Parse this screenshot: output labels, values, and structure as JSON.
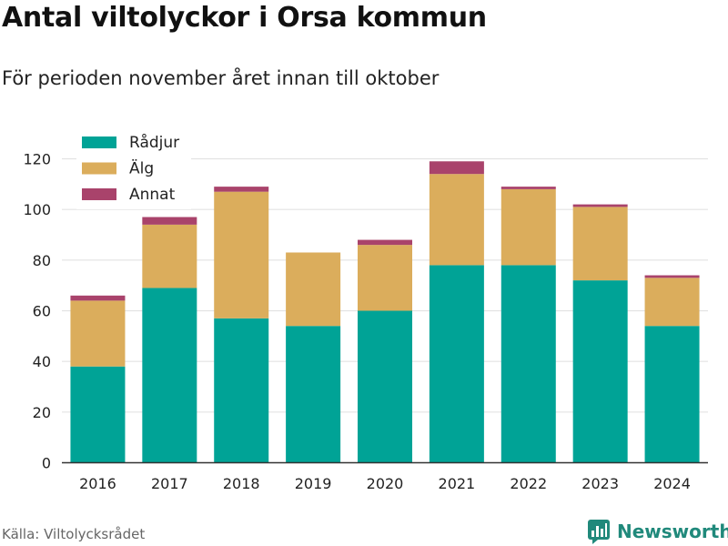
{
  "chart_data": {
    "type": "bar",
    "stacked": true,
    "title": "Antal viltolyckor i Orsa kommun",
    "subtitle": "För perioden november året innan till oktober",
    "categories": [
      "2016",
      "2017",
      "2018",
      "2019",
      "2020",
      "2021",
      "2022",
      "2023",
      "2024"
    ],
    "series": [
      {
        "name": "Rådjur",
        "color": "#00a396",
        "values": [
          38,
          69,
          57,
          54,
          60,
          78,
          78,
          72,
          54
        ]
      },
      {
        "name": "Älg",
        "color": "#dbad5c",
        "values": [
          26,
          25,
          50,
          29,
          26,
          36,
          30,
          29,
          19
        ]
      },
      {
        "name": "Annat",
        "color": "#a9436b",
        "values": [
          2,
          3,
          2,
          0,
          2,
          5,
          1,
          1,
          1
        ]
      }
    ],
    "yticks": [
      0,
      20,
      40,
      60,
      80,
      100,
      120
    ],
    "ylim": [
      0,
      120
    ],
    "grid": true,
    "legend_position": "top-left"
  },
  "footer": {
    "source": "Källa: Viltolycksrådet",
    "brand": "Newsworthy"
  },
  "colors": {
    "grid": "#e3e3e3",
    "axis": "#333333",
    "brand": "#20897b"
  }
}
